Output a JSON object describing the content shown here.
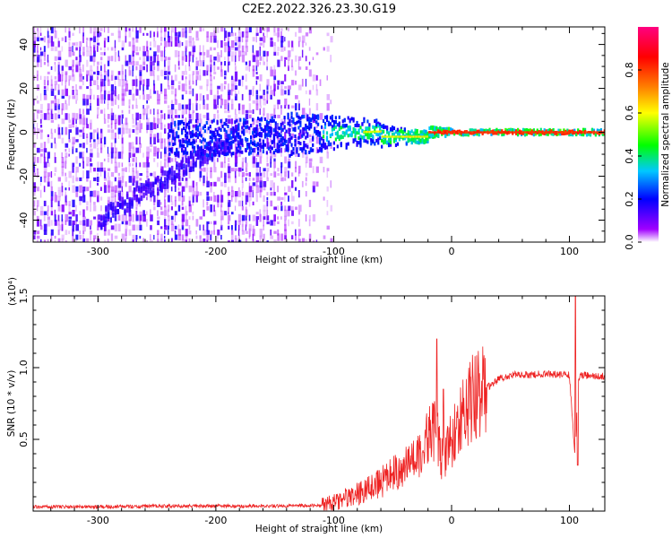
{
  "title": "C2E2.2022.326.23.30.G19",
  "chart_data": [
    {
      "type": "heatmap",
      "xlabel": "Height of straight line (km)",
      "ylabel": "Frequency (Hz)",
      "xlim": [
        -355,
        130
      ],
      "ylim": [
        -50,
        48
      ],
      "xticks": [
        -300,
        -200,
        -100,
        0,
        100
      ],
      "yticks": [
        -40,
        -20,
        0,
        20,
        40
      ],
      "colorbar": {
        "label": "Normalized spectral amplitude",
        "range": [
          0,
          1
        ],
        "ticks": [
          "0.0",
          "0.2",
          "0.4",
          "0.6",
          "0.8"
        ],
        "tick_values": [
          0,
          0.2,
          0.4,
          0.6,
          0.8
        ],
        "colors": [
          "#ffffff",
          "#a000ff",
          "#0000ff",
          "#00c8ff",
          "#00ff00",
          "#ffff00",
          "#ff8000",
          "#ff0000",
          "#ff0080"
        ]
      }
    },
    {
      "type": "line",
      "xlabel": "Height of straight line (km)",
      "ylabel": "SNR (10 * v/v)",
      "multiplier": "(x10⁴)",
      "xlim": [
        -355,
        130
      ],
      "ylim": [
        0,
        1.5
      ],
      "xticks": [
        -300,
        -200,
        -100,
        0,
        100
      ],
      "yticks": [
        "0.5",
        "1.0",
        "1.5"
      ],
      "ytick_values": [
        0.5,
        1.0,
        1.5
      ],
      "color": "#ee2222",
      "series": [
        {
          "x": [
            -355,
            -300,
            -250,
            -200,
            -150,
            -110,
            -100,
            -90,
            -80,
            -70,
            -60,
            -50,
            -40,
            -30,
            -25,
            -20,
            -15,
            -12,
            -10,
            -5,
            0,
            5,
            10,
            20,
            30,
            40,
            50,
            60,
            70,
            80,
            90,
            95,
            100,
            103,
            105,
            107,
            110,
            120,
            130
          ],
          "y": [
            0.03,
            0.03,
            0.035,
            0.035,
            0.035,
            0.04,
            0.06,
            0.09,
            0.12,
            0.16,
            0.2,
            0.26,
            0.3,
            0.38,
            0.45,
            0.5,
            0.55,
            0.52,
            0.4,
            0.4,
            0.48,
            0.6,
            0.72,
            0.8,
            0.86,
            0.92,
            0.95,
            0.95,
            0.95,
            0.96,
            0.95,
            0.95,
            0.95,
            0.6,
            0.32,
            0.9,
            0.95,
            0.94,
            0.94
          ]
        }
      ],
      "peaks": [
        {
          "x": -12.5,
          "y": 1.2
        },
        {
          "x": -7,
          "y": 0.85
        },
        {
          "x": 105,
          "y": 1.5
        },
        {
          "x": 107,
          "y": 0.32
        }
      ]
    }
  ]
}
